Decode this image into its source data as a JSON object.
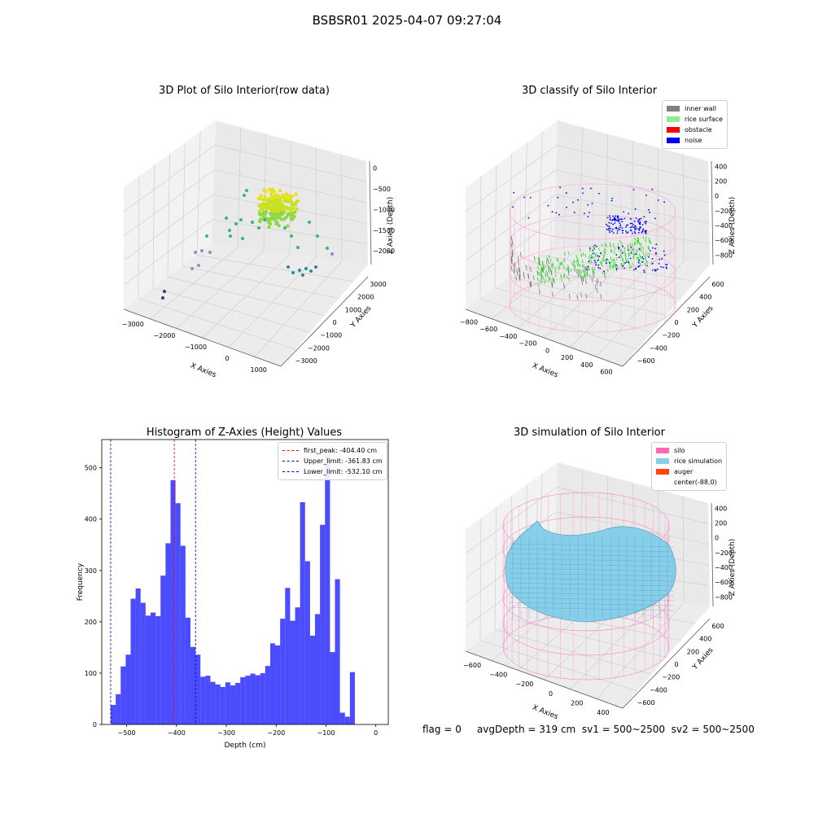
{
  "figure": {
    "suptitle": "BSBSR01 2025-04-07 09:27:04",
    "status_line": "flag = 0     avgDepth = 319 cm  sv1 = 500~2500  sv2 = 500~2500"
  },
  "panels": {
    "raw": {
      "title": "3D Plot of Silo Interior(row data)",
      "xlabel": "X Axies",
      "ylabel": "Y Axies",
      "zlabel": "Z Axies (Depth)",
      "xticks": [
        "−3000",
        "−2000",
        "−1000",
        "0",
        "1000"
      ],
      "yticks": [
        "3000",
        "2000",
        "1000",
        "0",
        "−1000",
        "−2000",
        "−3000"
      ],
      "zticks": [
        "0",
        "−500",
        "−1000",
        "−1500",
        "−2000"
      ]
    },
    "classify": {
      "title": "3D classify of Silo Interior",
      "xlabel": "X Axies",
      "ylabel": "Y Axies",
      "zlabel": "Z Axies (Depth)",
      "xticks": [
        "−800",
        "−600",
        "−400",
        "−200",
        "0",
        "200",
        "400",
        "600"
      ],
      "yticks": [
        "600",
        "400",
        "200",
        "0",
        "−200",
        "−400",
        "−600"
      ],
      "zticks": [
        "400",
        "200",
        "0",
        "−200",
        "−400",
        "−600",
        "−800"
      ],
      "legend": [
        {
          "label": "inner wall",
          "color": "#808080"
        },
        {
          "label": "rice surface",
          "color": "#90ee90"
        },
        {
          "label": "obstacle",
          "color": "#ff0000"
        },
        {
          "label": "noise",
          "color": "#0000ff"
        }
      ]
    },
    "simulation": {
      "title": "3D simulation of Silo Interior",
      "xlabel": "X Axies",
      "ylabel": "Y Axies",
      "zlabel": "Z Axies (Depth)",
      "xticks": [
        "−600",
        "−400",
        "−200",
        "0",
        "200",
        "400"
      ],
      "yticks": [
        "600",
        "400",
        "200",
        "0",
        "−200",
        "−400",
        "−600"
      ],
      "zticks": [
        "400",
        "200",
        "0",
        "−200",
        "−400",
        "−600",
        "−800"
      ],
      "legend": [
        {
          "label": "silo",
          "color": "#ff69b4"
        },
        {
          "label": "rice simulation",
          "color": "#87ceeb"
        },
        {
          "label": "auger",
          "color": "#ff4500"
        },
        {
          "label": "center(-88,0)",
          "color": "#ffffff"
        }
      ]
    }
  },
  "chart_data": [
    {
      "type": "bar",
      "title": "Histogram of Z-Axies (Height) Values",
      "xlabel": "Depth (cm)",
      "ylabel": "Frequency",
      "xlim": [
        -550,
        25
      ],
      "ylim": [
        0,
        555
      ],
      "xticks": [
        -500,
        -400,
        -300,
        -200,
        -100,
        0
      ],
      "yticks": [
        0,
        100,
        200,
        300,
        400,
        500
      ],
      "bar_color": "#0000ff",
      "bin_width": 10,
      "bin_edges_start": -532,
      "values": [
        38,
        59,
        113,
        136,
        245,
        265,
        237,
        212,
        218,
        211,
        290,
        353,
        476,
        431,
        348,
        208,
        151,
        136,
        93,
        95,
        83,
        78,
        73,
        82,
        76,
        81,
        92,
        95,
        99,
        96,
        100,
        114,
        158,
        154,
        206,
        266,
        202,
        228,
        433,
        318,
        173,
        215,
        389,
        525,
        141,
        283,
        23,
        15,
        102
      ],
      "lines": [
        {
          "label": "first_peak: -404.40 cm",
          "x": -404.4,
          "color": "#ff0000"
        },
        {
          "label": "Upper_limit: -361.83 cm",
          "x": -361.83,
          "color": "#0000aa"
        },
        {
          "label": "Lower_limit: -532.10 cm",
          "x": -532.1,
          "color": "#0000aa"
        }
      ]
    }
  ]
}
